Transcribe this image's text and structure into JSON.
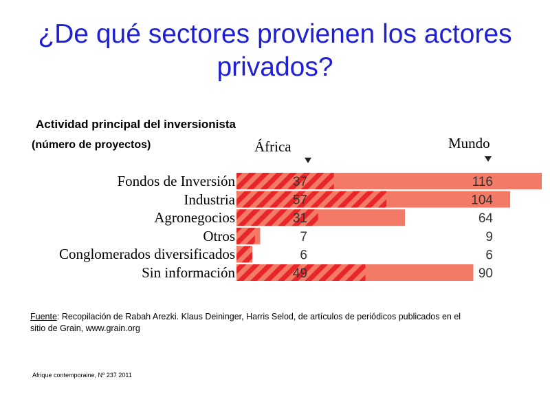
{
  "slide": {
    "title": "¿De qué sectores provienen los actores privados?",
    "source_label": "Fuente",
    "source_text": ": Recopilación de Rabah Arezki. Klaus Deininger, Harris Selod,  de artículos de periódicos publicados en el sitio de Grain, www.grain.org",
    "footer": "Afrique contemporaine, Nº 237 2011"
  },
  "chart_data": {
    "type": "bar",
    "title": "Actividad principal del inversionista",
    "subtitle": "(número de proyectos)",
    "categories": [
      "Fondos de Inversión",
      "Industria",
      "Agronegocios",
      "Otros",
      "Conglomerados diversificados",
      "Sin información"
    ],
    "series": [
      {
        "name": "África",
        "values": [
          37,
          57,
          31,
          7,
          6,
          49
        ],
        "pattern": "hatched",
        "color": "#f0584a"
      },
      {
        "name": "Mundo",
        "values": [
          116,
          104,
          64,
          9,
          6,
          90
        ],
        "pattern": "solid",
        "color": "#f37a67"
      }
    ],
    "xlim": [
      0,
      116
    ],
    "colors": {
      "bar_light": "#f37a67",
      "bar_hatch": "#e8262a",
      "title": "#1f1fd6"
    }
  }
}
